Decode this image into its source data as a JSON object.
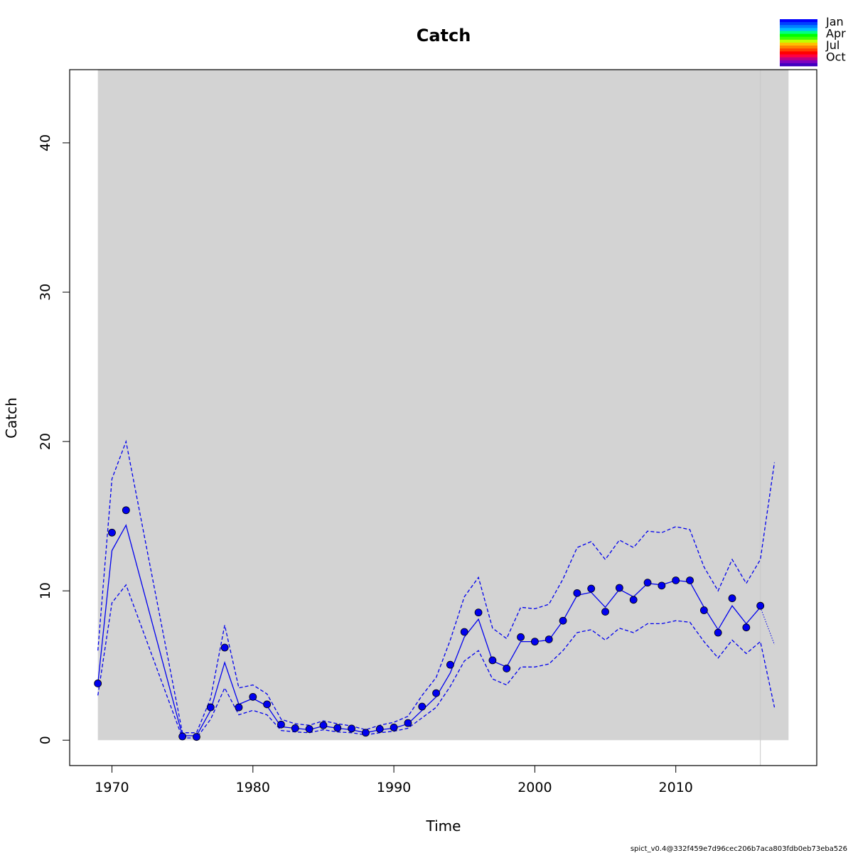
{
  "chart_data": {
    "type": "line",
    "title": "Catch",
    "xlabel": "Time",
    "ylabel": "Catch",
    "xlim": [
      1967,
      2020
    ],
    "ylim": [
      -1.7,
      44.9
    ],
    "x_ticks": [
      1970,
      1980,
      1990,
      2000,
      2010
    ],
    "y_ticks": [
      0,
      10,
      20,
      30,
      40
    ],
    "grid": false,
    "shaded_region": {
      "x": [
        1969,
        2018
      ],
      "y": [
        0,
        44.9
      ],
      "color": "#d3d3d3"
    },
    "vertical_line": {
      "x": 2016,
      "color": "#c8c8c8"
    },
    "observed_points": {
      "color": "#0000ee",
      "x": [
        1969,
        1970,
        1971,
        1975,
        1976,
        1977,
        1978,
        1979,
        1980,
        1981,
        1982,
        1983,
        1984,
        1985,
        1986,
        1987,
        1988,
        1989,
        1990,
        1991,
        1992,
        1993,
        1994,
        1995,
        1996,
        1997,
        1998,
        1999,
        2000,
        2001,
        2002,
        2003,
        2004,
        2005,
        2006,
        2007,
        2008,
        2009,
        2010,
        2011,
        2012,
        2013,
        2014,
        2015,
        2016
      ],
      "y": [
        3.8,
        13.9,
        15.4,
        0.25,
        0.22,
        2.2,
        6.2,
        2.2,
        2.9,
        2.4,
        1.05,
        0.8,
        0.75,
        1.0,
        0.82,
        0.78,
        0.5,
        0.75,
        0.85,
        1.15,
        2.25,
        3.15,
        5.05,
        7.25,
        8.55,
        5.35,
        4.8,
        6.9,
        6.6,
        6.75,
        8.0,
        9.85,
        10.15,
        8.6,
        10.2,
        9.4,
        10.55,
        10.35,
        10.7,
        10.7,
        8.7,
        7.2,
        9.5,
        7.55,
        9.0
      ]
    },
    "series": [
      {
        "name": "",
        "style": "solid",
        "color": "#0000ee",
        "x": [
          1969,
          1970,
          1971,
          1975,
          1976,
          1977,
          1978,
          1979,
          1980,
          1981,
          1982,
          1983,
          1984,
          1985,
          1986,
          1987,
          1988,
          1989,
          1990,
          1991,
          1992,
          1993,
          1994,
          1995,
          1996,
          1997,
          1998,
          1999,
          2000,
          2001,
          2002,
          2003,
          2004,
          2005,
          2006,
          2007,
          2008,
          2009,
          2010,
          2011,
          2012,
          2013,
          2014,
          2015,
          2016
        ],
        "y": [
          3.8,
          12.7,
          14.4,
          0.3,
          0.3,
          2.0,
          5.2,
          2.4,
          2.8,
          2.3,
          0.9,
          0.8,
          0.7,
          0.95,
          0.8,
          0.7,
          0.5,
          0.7,
          0.8,
          1.1,
          2.0,
          2.9,
          4.5,
          6.9,
          8.1,
          5.3,
          4.9,
          6.6,
          6.6,
          6.7,
          8.0,
          9.7,
          9.9,
          8.9,
          10.1,
          9.6,
          10.5,
          10.4,
          10.7,
          10.6,
          8.9,
          7.4,
          9.0,
          7.8,
          8.9
        ]
      },
      {
        "name": "",
        "style": "dashed",
        "color": "#0000ee",
        "x": [
          1969,
          1970,
          1971,
          1975,
          1976,
          1977,
          1978,
          1979,
          1980,
          1981,
          1982,
          1983,
          1984,
          1985,
          1986,
          1987,
          1988,
          1989,
          1990,
          1991,
          1992,
          1993,
          1994,
          1995,
          1996,
          1997,
          1998,
          1999,
          2000,
          2001,
          2002,
          2003,
          2004,
          2005,
          2006,
          2007,
          2008,
          2009,
          2010,
          2011,
          2012,
          2013,
          2014,
          2015,
          2016,
          2017
        ],
        "y": [
          6.0,
          17.5,
          20.0,
          0.5,
          0.5,
          2.8,
          7.7,
          3.5,
          3.7,
          3.1,
          1.4,
          1.1,
          1.0,
          1.3,
          1.1,
          0.95,
          0.7,
          1.0,
          1.2,
          1.6,
          3.0,
          4.2,
          6.7,
          9.6,
          10.9,
          7.5,
          6.8,
          8.9,
          8.8,
          9.1,
          10.8,
          12.9,
          13.3,
          12.1,
          13.4,
          12.9,
          14.0,
          13.9,
          14.3,
          14.1,
          11.6,
          10.0,
          12.1,
          10.5,
          12.1,
          18.6
        ]
      },
      {
        "name": "",
        "style": "dashed",
        "color": "#0000ee",
        "x": [
          1969,
          1970,
          1971,
          1975,
          1976,
          1977,
          1978,
          1979,
          1980,
          1981,
          1982,
          1983,
          1984,
          1985,
          1986,
          1987,
          1988,
          1989,
          1990,
          1991,
          1992,
          1993,
          1994,
          1995,
          1996,
          1997,
          1998,
          1999,
          2000,
          2001,
          2002,
          2003,
          2004,
          2005,
          2006,
          2007,
          2008,
          2009,
          2010,
          2011,
          2012,
          2013,
          2014,
          2015,
          2016,
          2017
        ],
        "y": [
          3.0,
          9.2,
          10.4,
          0.15,
          0.15,
          1.4,
          3.5,
          1.7,
          2.0,
          1.7,
          0.65,
          0.55,
          0.5,
          0.7,
          0.55,
          0.5,
          0.35,
          0.5,
          0.6,
          0.8,
          1.5,
          2.2,
          3.6,
          5.3,
          6.0,
          4.1,
          3.7,
          4.9,
          4.9,
          5.1,
          6.0,
          7.2,
          7.4,
          6.7,
          7.5,
          7.2,
          7.8,
          7.8,
          8.0,
          7.9,
          6.6,
          5.5,
          6.7,
          5.8,
          6.6,
          2.2
        ]
      },
      {
        "name": "",
        "style": "dotted",
        "color": "#0000ee",
        "x": [
          2016,
          2017
        ],
        "y": [
          8.9,
          6.4
        ]
      }
    ],
    "legend": {
      "placement": "top-right",
      "labels": [
        "Jan",
        "Apr",
        "Jul",
        "Oct"
      ],
      "colors": [
        "#0000ff",
        "#0040ff",
        "#0080ff",
        "#00bfff",
        "#00ff80",
        "#00ff00",
        "#40ff00",
        "#bfff00",
        "#ffbf00",
        "#ff8000",
        "#ff4000",
        "#ff0000",
        "#ff0040",
        "#bf0080",
        "#8000bf",
        "#4000bf"
      ]
    }
  },
  "footer_text": "spict_v0.4@332f459e7d96cec206b7aca803fdb0eb73eba526"
}
